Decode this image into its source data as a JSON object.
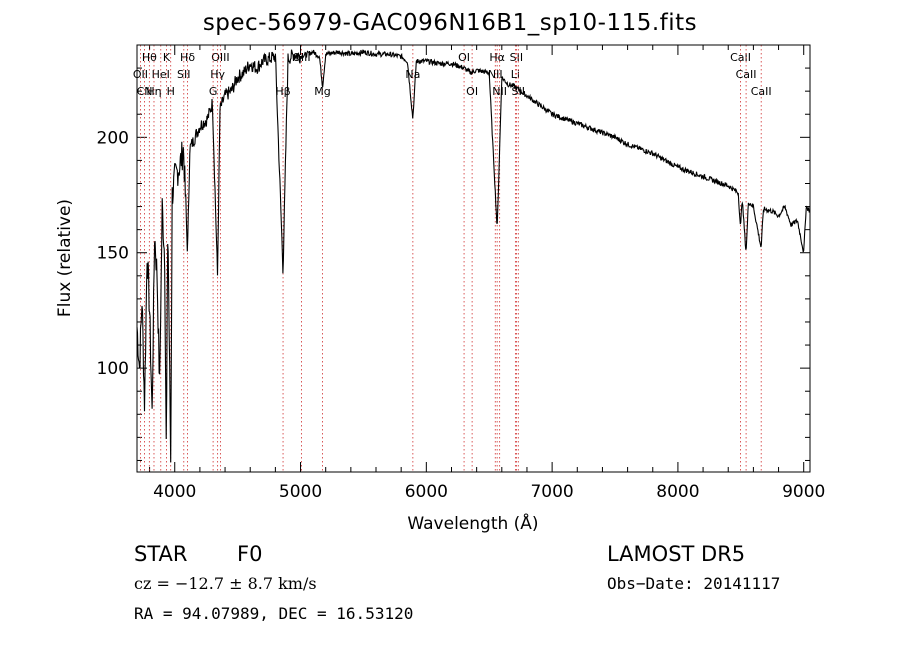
{
  "chart_data": {
    "type": "line",
    "title": "spec-56979-GAC096N16B1_sp10-115.fits",
    "xlabel": "Wavelength (Å)",
    "ylabel": "Flux (relative)",
    "xlim": [
      3700,
      9050
    ],
    "ylim": [
      55,
      240
    ],
    "x_ticks": [
      4000,
      5000,
      6000,
      7000,
      8000,
      9000
    ],
    "y_ticks": [
      100,
      150,
      200
    ],
    "grid": false,
    "series": [
      {
        "color": "#000000",
        "points": [
          [
            3700,
            118
          ],
          [
            3720,
            100
          ],
          [
            3740,
            130
          ],
          [
            3760,
            85
          ],
          [
            3780,
            150
          ],
          [
            3800,
            125
          ],
          [
            3820,
            80
          ],
          [
            3840,
            158
          ],
          [
            3860,
            140
          ],
          [
            3880,
            92
          ],
          [
            3900,
            170
          ],
          [
            3920,
            148
          ],
          [
            3933,
            60
          ],
          [
            3945,
            165
          ],
          [
            3968,
            60
          ],
          [
            3980,
            175
          ],
          [
            4000,
            182
          ],
          [
            4040,
            188
          ],
          [
            4070,
            195
          ],
          [
            4102,
            150
          ],
          [
            4120,
            195
          ],
          [
            4160,
            200
          ],
          [
            4200,
            205
          ],
          [
            4260,
            208
          ],
          [
            4300,
            215
          ],
          [
            4340,
            140
          ],
          [
            4360,
            212
          ],
          [
            4400,
            218
          ],
          [
            4450,
            220
          ],
          [
            4500,
            226
          ],
          [
            4550,
            228
          ],
          [
            4600,
            232
          ],
          [
            4650,
            230
          ],
          [
            4700,
            233
          ],
          [
            4750,
            234
          ],
          [
            4800,
            235
          ],
          [
            4861,
            142
          ],
          [
            4900,
            234
          ],
          [
            4950,
            236
          ],
          [
            5000,
            235
          ],
          [
            5050,
            236
          ],
          [
            5100,
            237
          ],
          [
            5150,
            235
          ],
          [
            5175,
            222
          ],
          [
            5200,
            236
          ],
          [
            5300,
            237
          ],
          [
            5400,
            236
          ],
          [
            5500,
            237
          ],
          [
            5600,
            236
          ],
          [
            5700,
            236
          ],
          [
            5800,
            235
          ],
          [
            5850,
            233
          ],
          [
            5893,
            208
          ],
          [
            5920,
            233
          ],
          [
            6000,
            233
          ],
          [
            6100,
            232
          ],
          [
            6200,
            232
          ],
          [
            6300,
            230
          ],
          [
            6350,
            228
          ],
          [
            6400,
            229
          ],
          [
            6500,
            228
          ],
          [
            6563,
            160
          ],
          [
            6600,
            226
          ],
          [
            6650,
            223
          ],
          [
            6700,
            222
          ],
          [
            6800,
            218
          ],
          [
            6900,
            214
          ],
          [
            7000,
            210
          ],
          [
            7100,
            208
          ],
          [
            7200,
            206
          ],
          [
            7300,
            204
          ],
          [
            7400,
            202
          ],
          [
            7500,
            200
          ],
          [
            7600,
            197
          ],
          [
            7700,
            195
          ],
          [
            7800,
            193
          ],
          [
            7900,
            190
          ],
          [
            8000,
            187
          ],
          [
            8100,
            185
          ],
          [
            8200,
            183
          ],
          [
            8300,
            181
          ],
          [
            8400,
            179
          ],
          [
            8480,
            176
          ],
          [
            8498,
            160
          ],
          [
            8510,
            174
          ],
          [
            8542,
            150
          ],
          [
            8560,
            172
          ],
          [
            8600,
            170
          ],
          [
            8662,
            152
          ],
          [
            8680,
            169
          ],
          [
            8750,
            168
          ],
          [
            8800,
            166
          ],
          [
            8850,
            170
          ],
          [
            8900,
            162
          ],
          [
            8950,
            164
          ],
          [
            9000,
            150
          ],
          [
            9020,
            170
          ],
          [
            9050,
            168
          ]
        ]
      }
    ],
    "line_markers": [
      {
        "label": "Hθ",
        "wl": 3798,
        "row": 0
      },
      {
        "label": "K",
        "wl": 3934,
        "row": 0
      },
      {
        "label": "Hδ",
        "wl": 4102,
        "row": 0
      },
      {
        "label": "OII",
        "wl": 3727,
        "row": 1
      },
      {
        "label": "HeI",
        "wl": 3889,
        "row": 1
      },
      {
        "label": "SII",
        "wl": 4072,
        "row": 1
      },
      {
        "label": "CN",
        "wl": 3760,
        "row": 2
      },
      {
        "label": "Hη",
        "wl": 3835,
        "row": 2
      },
      {
        "label": "H",
        "wl": 3968,
        "row": 2
      },
      {
        "label": "OIII",
        "wl": 4363,
        "row": 0
      },
      {
        "label": "Hγ",
        "wl": 4341,
        "row": 1
      },
      {
        "label": "G",
        "wl": 4305,
        "row": 2
      },
      {
        "label": "OIII",
        "wl": 5007,
        "row": 0
      },
      {
        "label": "Hβ",
        "wl": 4861,
        "row": 2
      },
      {
        "label": "Mg",
        "wl": 5175,
        "row": 2
      },
      {
        "label": "Na",
        "wl": 5893,
        "row": 1
      },
      {
        "label": "OI",
        "wl": 6300,
        "row": 0
      },
      {
        "label": "OI",
        "wl": 6364,
        "row": 2
      },
      {
        "label": "Hα",
        "wl": 6563,
        "row": 0
      },
      {
        "label": "SII",
        "wl": 6716,
        "row": 0
      },
      {
        "label": "NII",
        "wl": 6548,
        "row": 1
      },
      {
        "label": "Li",
        "wl": 6708,
        "row": 1
      },
      {
        "label": "NII",
        "wl": 6583,
        "row": 2
      },
      {
        "label": "SII",
        "wl": 6731,
        "row": 2
      },
      {
        "label": "CaII",
        "wl": 8498,
        "row": 0
      },
      {
        "label": "CaII",
        "wl": 8542,
        "row": 1
      },
      {
        "label": "CaII",
        "wl": 8662,
        "row": 2
      }
    ]
  },
  "info": {
    "object_class": "STAR",
    "subclass": "F0",
    "survey": "LAMOST  DR5",
    "cz": "cz = −12.7 ± 8.7 km/s",
    "obs_date": "Obs−Date: 20141117",
    "coords": "RA =  94.07989, DEC =  16.53120"
  }
}
